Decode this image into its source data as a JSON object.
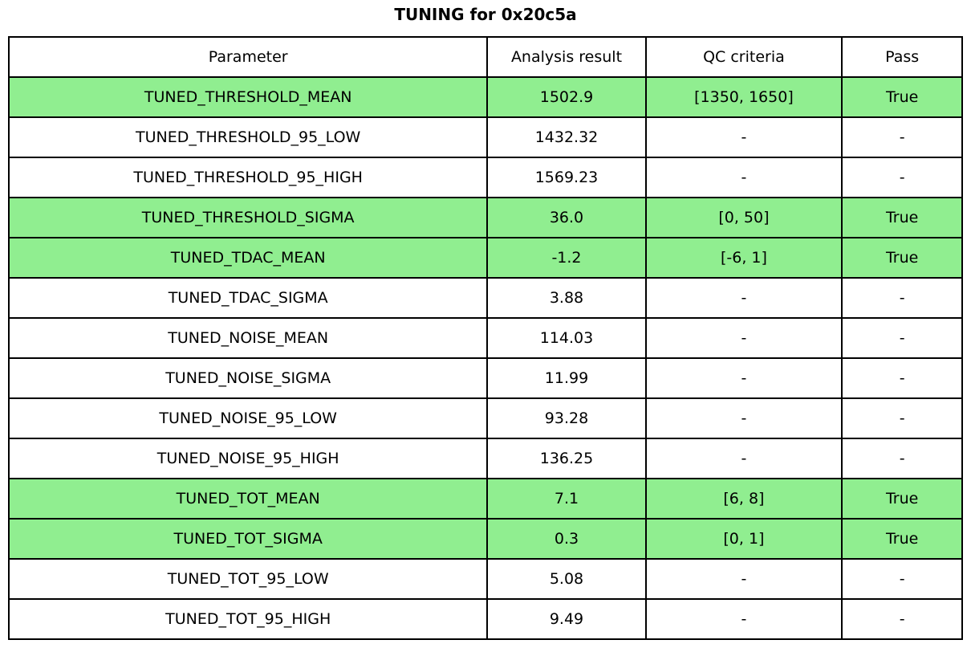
{
  "title": "TUNING for 0x20c5a",
  "chart_data": {
    "type": "table",
    "title": "TUNING for 0x20c5a",
    "columns": [
      "Parameter",
      "Analysis result",
      "QC criteria",
      "Pass"
    ],
    "highlight_color": "#90EE90",
    "border_color": "#000000",
    "rows": [
      {
        "parameter": "TUNED_THRESHOLD_MEAN",
        "result": "1502.9",
        "qc": "[1350, 1650]",
        "pass": "True",
        "highlight": true
      },
      {
        "parameter": "TUNED_THRESHOLD_95_LOW",
        "result": "1432.32",
        "qc": "-",
        "pass": "-",
        "highlight": false
      },
      {
        "parameter": "TUNED_THRESHOLD_95_HIGH",
        "result": "1569.23",
        "qc": "-",
        "pass": "-",
        "highlight": false
      },
      {
        "parameter": "TUNED_THRESHOLD_SIGMA",
        "result": "36.0",
        "qc": "[0, 50]",
        "pass": "True",
        "highlight": true
      },
      {
        "parameter": "TUNED_TDAC_MEAN",
        "result": "-1.2",
        "qc": "[-6, 1]",
        "pass": "True",
        "highlight": true
      },
      {
        "parameter": "TUNED_TDAC_SIGMA",
        "result": "3.88",
        "qc": "-",
        "pass": "-",
        "highlight": false
      },
      {
        "parameter": "TUNED_NOISE_MEAN",
        "result": "114.03",
        "qc": "-",
        "pass": "-",
        "highlight": false
      },
      {
        "parameter": "TUNED_NOISE_SIGMA",
        "result": "11.99",
        "qc": "-",
        "pass": "-",
        "highlight": false
      },
      {
        "parameter": "TUNED_NOISE_95_LOW",
        "result": "93.28",
        "qc": "-",
        "pass": "-",
        "highlight": false
      },
      {
        "parameter": "TUNED_NOISE_95_HIGH",
        "result": "136.25",
        "qc": "-",
        "pass": "-",
        "highlight": false
      },
      {
        "parameter": "TUNED_TOT_MEAN",
        "result": "7.1",
        "qc": "[6, 8]",
        "pass": "True",
        "highlight": true
      },
      {
        "parameter": "TUNED_TOT_SIGMA",
        "result": "0.3",
        "qc": "[0, 1]",
        "pass": "True",
        "highlight": true
      },
      {
        "parameter": "TUNED_TOT_95_LOW",
        "result": "5.08",
        "qc": "-",
        "pass": "-",
        "highlight": false
      },
      {
        "parameter": "TUNED_TOT_95_HIGH",
        "result": "9.49",
        "qc": "-",
        "pass": "-",
        "highlight": false
      }
    ]
  }
}
